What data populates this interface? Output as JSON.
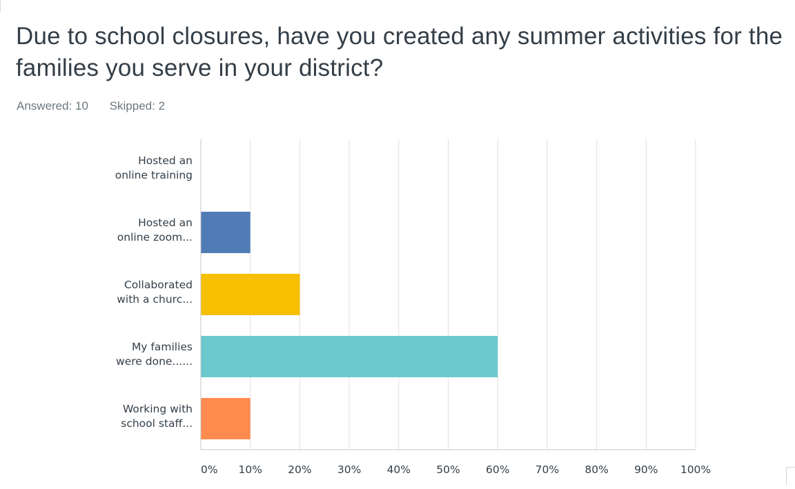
{
  "question": {
    "title": "Due to school closures, have you created any summer activities for the families you serve in your district?"
  },
  "stats": {
    "answered": "Answered: 10",
    "skipped": "Skipped: 2"
  },
  "chart_data": {
    "type": "bar",
    "orientation": "horizontal",
    "categories": [
      [
        "Hosted an",
        "online training"
      ],
      [
        "Hosted an",
        "online zoom..."
      ],
      [
        "Collaborated",
        "with a churc..."
      ],
      [
        "My families",
        "were done......"
      ],
      [
        "Working with",
        "school staff..."
      ]
    ],
    "values": [
      0,
      10,
      20,
      60,
      10
    ],
    "colors": [
      "#507cb6",
      "#507cb6",
      "#f6bf00",
      "#6bc8cd",
      "#ff8b4f"
    ],
    "xlim": [
      0,
      100
    ],
    "ticks": [
      0,
      10,
      20,
      30,
      40,
      50,
      60,
      70,
      80,
      90,
      100
    ],
    "tick_labels": [
      "0%",
      "10%",
      "20%",
      "30%",
      "40%",
      "50%",
      "60%",
      "70%",
      "80%",
      "90%",
      "100%"
    ],
    "grid": true
  },
  "colors": {
    "title": "#333e48",
    "stats": "#6b787f",
    "gridline": "#e0e0e0",
    "axis": "#c4c4c4"
  }
}
